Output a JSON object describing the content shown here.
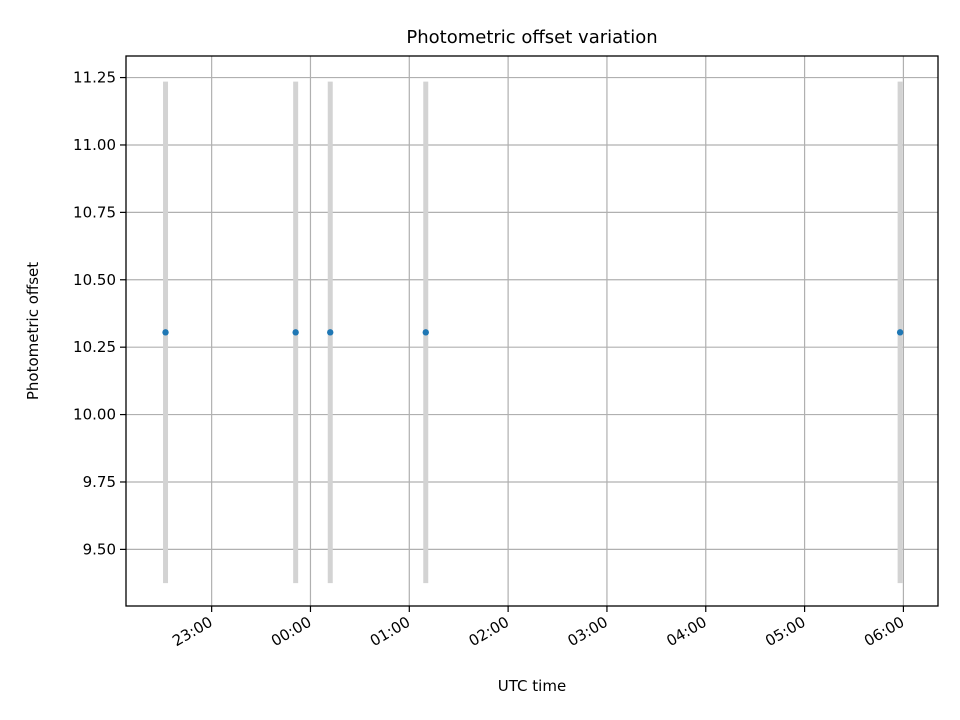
{
  "chart_data": {
    "type": "scatter",
    "title": "Photometric offset variation",
    "xlabel": "UTC time",
    "ylabel": "Photometric offset",
    "x_scale": "time",
    "x_ticks": [
      "23:00",
      "00:00",
      "01:00",
      "02:00",
      "03:00",
      "04:00",
      "05:00",
      "06:00"
    ],
    "x_tick_hours": [
      23,
      24,
      25,
      26,
      27,
      28,
      29,
      30
    ],
    "xlim": [
      "22:08",
      "06:21"
    ],
    "y_ticks": [
      "9.50",
      "9.75",
      "10.00",
      "10.25",
      "10.50",
      "10.75",
      "11.00",
      "11.25"
    ],
    "ylim": [
      9.29,
      11.33
    ],
    "grid": true,
    "points": [
      {
        "x": "22:32",
        "y": 10.305,
        "yerr_low": 9.375,
        "yerr_high": 11.235
      },
      {
        "x": "23:51",
        "y": 10.305,
        "yerr_low": 9.375,
        "yerr_high": 11.235
      },
      {
        "x": "00:12",
        "y": 10.305,
        "yerr_low": 9.375,
        "yerr_high": 11.235
      },
      {
        "x": "01:10",
        "y": 10.305,
        "yerr_low": 9.375,
        "yerr_high": 11.235
      },
      {
        "x": "05:58",
        "y": 10.305,
        "yerr_low": 9.375,
        "yerr_high": 11.235
      }
    ],
    "colors": {
      "marker": "#1f77b4",
      "errorbar": "#d3d3d3",
      "grid": "#b0b0b0",
      "axes": "#000000"
    }
  }
}
